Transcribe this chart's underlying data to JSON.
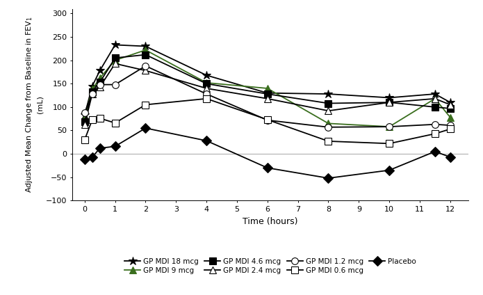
{
  "xlabel": "Time (hours)",
  "ylabel": "Adjusted Mean Change from Baseline in FEV$_1$\n(mL)",
  "xlim": [
    -0.4,
    12.6
  ],
  "ylim": [
    -100,
    310
  ],
  "yticks": [
    -100,
    -50,
    0,
    50,
    100,
    150,
    200,
    250,
    300
  ],
  "xticks": [
    0,
    1,
    2,
    3,
    4,
    5,
    6,
    7,
    8,
    9,
    10,
    11,
    12
  ],
  "series": [
    {
      "label": "GP MDI 18 mcg",
      "color": "#000000",
      "marker": "*",
      "markersize": 9,
      "linewidth": 1.3,
      "markerfacecolor": "#000000",
      "x": [
        0,
        0.25,
        0.5,
        1,
        2,
        4,
        6,
        8,
        10,
        11.5,
        12
      ],
      "y": [
        83,
        145,
        178,
        233,
        230,
        168,
        130,
        128,
        120,
        128,
        110
      ]
    },
    {
      "label": "GP MDI 9 mcg",
      "color": "#3a6e1e",
      "marker": "^",
      "markersize": 7,
      "linewidth": 1.3,
      "markerfacecolor": "#3a6e1e",
      "x": [
        0,
        0.25,
        0.5,
        1,
        2,
        4,
        6,
        8,
        10,
        11.5,
        12
      ],
      "y": [
        78,
        138,
        162,
        200,
        222,
        152,
        140,
        65,
        58,
        118,
        78
      ]
    },
    {
      "label": "GP MDI 4.6 mcg",
      "color": "#000000",
      "marker": "s",
      "markersize": 7,
      "linewidth": 1.3,
      "markerfacecolor": "#000000",
      "x": [
        0,
        0.25,
        0.5,
        1,
        2,
        4,
        6,
        8,
        10,
        11.5,
        12
      ],
      "y": [
        68,
        133,
        153,
        205,
        212,
        150,
        128,
        108,
        110,
        100,
        97
      ]
    },
    {
      "label": "GP MDI 2.4 mcg",
      "color": "#000000",
      "marker": "^",
      "markersize": 7,
      "linewidth": 1.3,
      "markerfacecolor": "white",
      "x": [
        0,
        0.25,
        0.5,
        1,
        2,
        4,
        6,
        8,
        10,
        11.5,
        12
      ],
      "y": [
        63,
        128,
        143,
        193,
        178,
        140,
        118,
        92,
        110,
        118,
        105
      ]
    },
    {
      "label": "GP MDI 1.2 mcg",
      "color": "#000000",
      "marker": "o",
      "markersize": 7,
      "linewidth": 1.3,
      "markerfacecolor": "white",
      "x": [
        0,
        0.25,
        0.5,
        1,
        2,
        4,
        6,
        8,
        10,
        11.5,
        12
      ],
      "y": [
        88,
        128,
        148,
        148,
        188,
        128,
        72,
        57,
        58,
        63,
        61
      ]
    },
    {
      "label": "GP MDI 0.6 mcg",
      "color": "#000000",
      "marker": "s",
      "markersize": 7,
      "linewidth": 1.3,
      "markerfacecolor": "white",
      "x": [
        0,
        0.25,
        0.5,
        1,
        2,
        4,
        6,
        8,
        10,
        11.5,
        12
      ],
      "y": [
        30,
        73,
        76,
        66,
        105,
        118,
        73,
        27,
        22,
        43,
        53
      ]
    },
    {
      "label": "Placebo",
      "color": "#000000",
      "marker": "D",
      "markersize": 7,
      "linewidth": 1.3,
      "markerfacecolor": "#000000",
      "x": [
        0,
        0.25,
        0.5,
        1,
        2,
        4,
        6,
        8,
        10,
        11.5,
        12
      ],
      "y": [
        -12,
        -7,
        12,
        16,
        55,
        28,
        -30,
        -52,
        -35,
        5,
        -7
      ]
    }
  ],
  "background_color": "#ffffff",
  "grid_color": "#b0b0b0",
  "legend_rows": [
    [
      "GP MDI 18 mcg",
      "GP MDI 9 mcg",
      "GP MDI 4.6 mcg",
      "GP MDI 2.4 mcg"
    ],
    [
      "GP MDI 1.2 mcg",
      "GP MDI 0.6 mcg",
      "Placebo"
    ]
  ]
}
